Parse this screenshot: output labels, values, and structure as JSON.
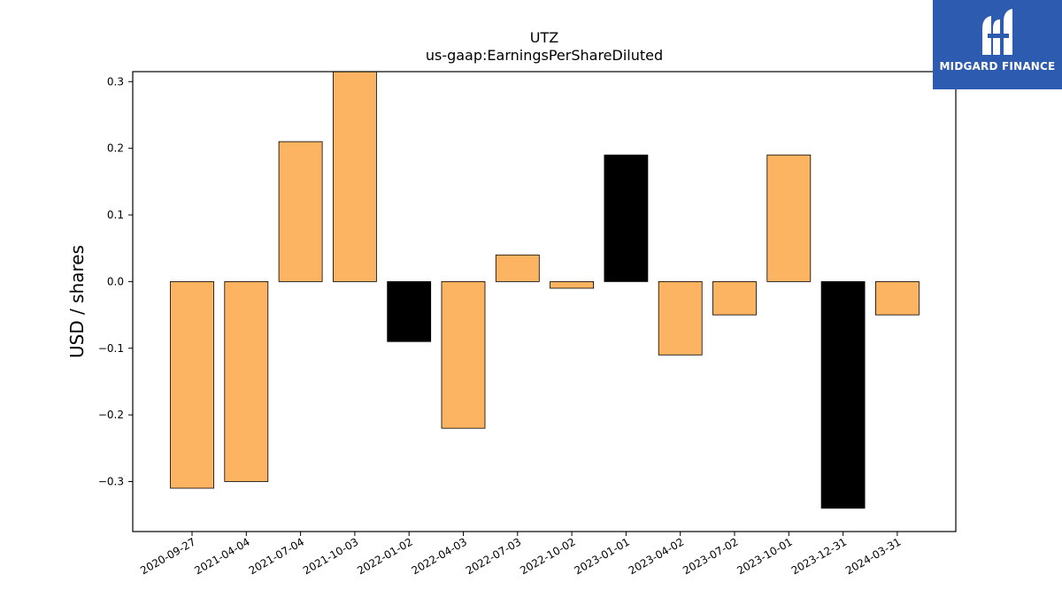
{
  "chart_data": {
    "type": "bar",
    "title": "UTZ",
    "subtitle": "us-gaap:EarningsPerShareDiluted",
    "ylabel": "USD / shares",
    "xlabel": "",
    "ylim": [
      -0.375,
      0.315
    ],
    "yticks": [
      -0.3,
      -0.2,
      -0.1,
      0.0,
      0.1,
      0.2,
      0.3
    ],
    "ytick_labels": [
      "−0.3",
      "−0.2",
      "−0.1",
      "0.0",
      "0.1",
      "0.2",
      "0.3"
    ],
    "grid": false,
    "categories": [
      "2020-09-27",
      "2021-04-04",
      "2021-07-04",
      "2021-10-03",
      "2022-01-02",
      "2022-04-03",
      "2022-07-03",
      "2022-10-02",
      "2023-01-01",
      "2023-04-02",
      "2023-07-02",
      "2023-10-01",
      "2023-12-31",
      "2024-03-31"
    ],
    "values": [
      -0.31,
      -0.3,
      0.21,
      0.315,
      -0.09,
      -0.22,
      0.04,
      -0.01,
      0.19,
      -0.11,
      -0.05,
      0.19,
      -0.34,
      -0.05
    ],
    "colors": [
      "#fdb462",
      "#fdb462",
      "#fdb462",
      "#fdb462",
      "#000000",
      "#fdb462",
      "#fdb462",
      "#fdb462",
      "#000000",
      "#fdb462",
      "#fdb462",
      "#fdb462",
      "#000000",
      "#fdb462"
    ]
  },
  "logo": {
    "text": "MIDGARD FINANCE",
    "background": "#2d5bb0"
  }
}
